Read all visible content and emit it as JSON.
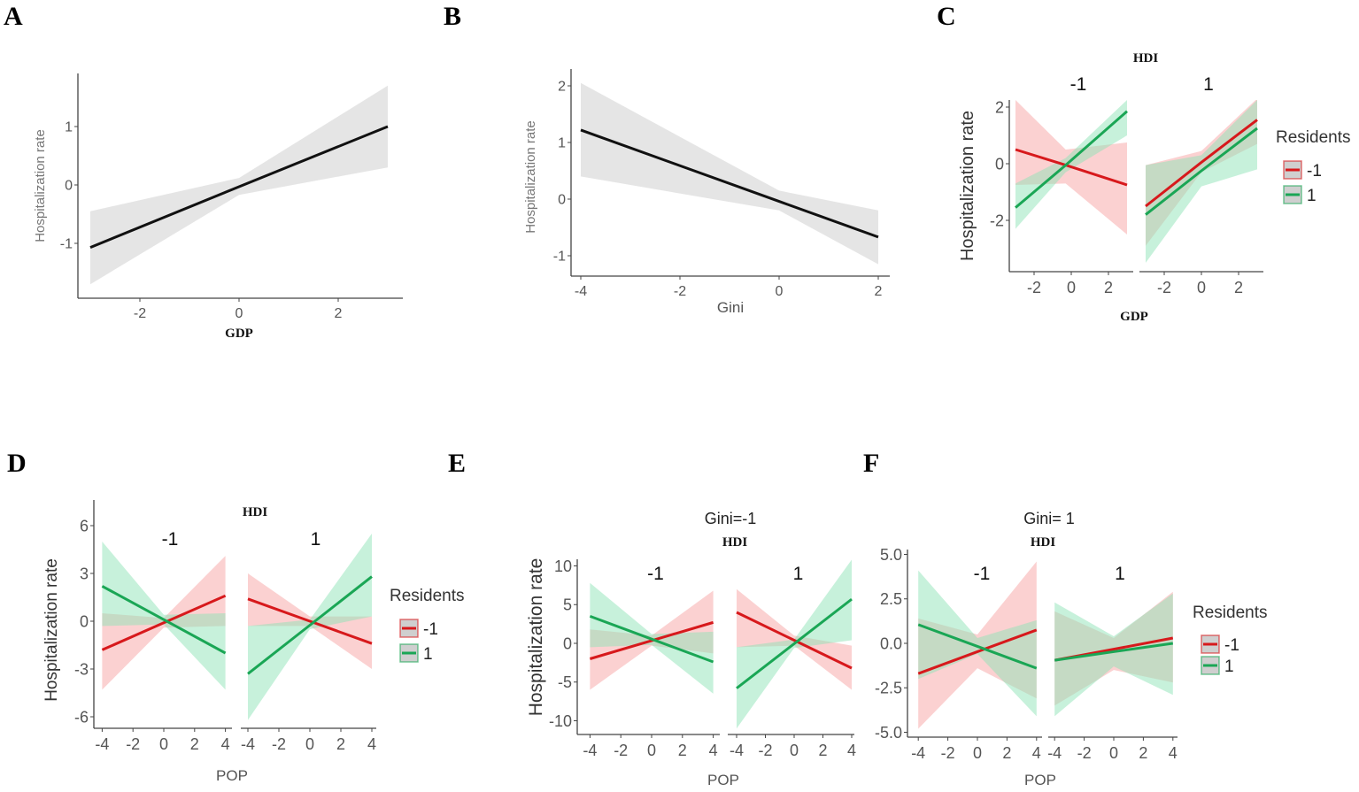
{
  "chart_data": [
    {
      "panel": "A",
      "type": "line",
      "ylabel": "Hospitalization rate",
      "xlabel": "GDP",
      "strip_title": "",
      "xticks": [
        -2,
        0,
        2
      ],
      "yticks": [
        -1,
        0,
        1
      ],
      "facets": [
        {
          "label": "",
          "series": [
            {
              "name": "fit",
              "color": "#111111",
              "band": "#cccccc",
              "x": [
                -3,
                0,
                3
              ],
              "y": [
                -1.07,
                -0.03,
                1.0
              ],
              "lo": [
                -1.7,
                -0.17,
                0.3
              ],
              "hi": [
                -0.45,
                0.12,
                1.7
              ]
            }
          ]
        }
      ]
    },
    {
      "panel": "B",
      "type": "line",
      "ylabel": "Hospitalization rate",
      "xlabel": "Gini",
      "strip_title": "",
      "xticks": [
        -4,
        -2,
        0,
        2
      ],
      "yticks": [
        -1,
        0,
        1,
        2
      ],
      "facets": [
        {
          "label": "",
          "series": [
            {
              "name": "fit",
              "color": "#111111",
              "band": "#cccccc",
              "x": [
                -4,
                0,
                2
              ],
              "y": [
                1.22,
                -0.04,
                -0.67
              ],
              "lo": [
                0.4,
                -0.2,
                -1.15
              ],
              "hi": [
                2.05,
                0.15,
                -0.2
              ]
            }
          ]
        }
      ]
    },
    {
      "panel": "C",
      "type": "line",
      "ylabel": "Hospitalization rate",
      "xlabel": "GDP",
      "strip_title": "HDI",
      "xticks": [
        -2,
        0,
        2
      ],
      "yticks": [
        -2,
        0,
        2
      ],
      "legend": {
        "title": "Residents",
        "entries": [
          "-1",
          "1"
        ]
      },
      "facets": [
        {
          "label": "-1",
          "series": [
            {
              "name": "-1",
              "color": "#d7191c",
              "band": "#f7a3a3",
              "x": [
                -3,
                -0.3,
                3
              ],
              "y": [
                0.5,
                -0.05,
                -0.75
              ],
              "lo": [
                -0.75,
                -0.7,
                -2.5
              ],
              "hi": [
                2.25,
                0.5,
                0.75
              ]
            },
            {
              "name": "1",
              "color": "#1aa655",
              "band": "#8fe3b8",
              "x": [
                -3,
                -0.3,
                3
              ],
              "y": [
                -1.55,
                -0.05,
                1.85
              ],
              "lo": [
                -2.3,
                -0.3,
                1.0
              ],
              "hi": [
                -0.7,
                0.2,
                2.25
              ]
            }
          ]
        },
        {
          "label": "1",
          "series": [
            {
              "name": "-1",
              "color": "#d7191c",
              "band": "#f7a3a3",
              "x": [
                -3,
                0,
                3
              ],
              "y": [
                -1.5,
                0.05,
                1.55
              ],
              "lo": [
                -2.9,
                -0.3,
                0.7
              ],
              "hi": [
                -0.05,
                0.45,
                2.3
              ]
            },
            {
              "name": "1",
              "color": "#1aa655",
              "band": "#8fe3b8",
              "x": [
                -3,
                0,
                3
              ],
              "y": [
                -1.8,
                -0.25,
                1.25
              ],
              "lo": [
                -3.5,
                -0.8,
                -0.2
              ],
              "hi": [
                -0.05,
                0.3,
                2.25
              ]
            }
          ]
        }
      ]
    },
    {
      "panel": "D",
      "type": "line",
      "ylabel": "Hospitalization rate",
      "xlabel": "POP",
      "strip_title": "HDI",
      "xticks": [
        -4,
        -2,
        0,
        2,
        4
      ],
      "yticks": [
        -6,
        -3,
        0,
        3,
        6
      ],
      "legend": {
        "title": "Residents",
        "entries": [
          "-1",
          "1"
        ]
      },
      "facets": [
        {
          "label": "-1",
          "series": [
            {
              "name": "-1",
              "color": "#d7191c",
              "band": "#f7a3a3",
              "x": [
                -4,
                0,
                4
              ],
              "y": [
                -1.8,
                -0.1,
                1.6
              ],
              "lo": [
                -4.3,
                -0.4,
                -0.3
              ],
              "hi": [
                0.5,
                0.2,
                4.1
              ]
            },
            {
              "name": "1",
              "color": "#1aa655",
              "band": "#8fe3b8",
              "x": [
                -4,
                0,
                4
              ],
              "y": [
                2.2,
                0.1,
                -2.0
              ],
              "lo": [
                -0.3,
                -0.2,
                -4.3
              ],
              "hi": [
                5.0,
                0.4,
                0.5
              ]
            }
          ]
        },
        {
          "label": "1",
          "series": [
            {
              "name": "-1",
              "color": "#d7191c",
              "band": "#f7a3a3",
              "x": [
                -4,
                0,
                4
              ],
              "y": [
                1.4,
                0.0,
                -1.4
              ],
              "lo": [
                -0.3,
                -0.3,
                -3.0
              ],
              "hi": [
                3.0,
                0.3,
                0.3
              ]
            },
            {
              "name": "1",
              "color": "#1aa655",
              "band": "#8fe3b8",
              "x": [
                -4,
                0,
                4
              ],
              "y": [
                -3.3,
                -0.25,
                2.8
              ],
              "lo": [
                -6.2,
                -0.5,
                0.3
              ],
              "hi": [
                -0.3,
                0.1,
                5.5
              ]
            }
          ]
        }
      ]
    },
    {
      "panel": "E",
      "type": "line",
      "ylabel": "Hospitalization rate",
      "xlabel": "POP",
      "title": "Gini=-1",
      "strip_title": "HDI",
      "xticks": [
        -4,
        -2,
        0,
        2,
        4
      ],
      "yticks": [
        -10,
        -5,
        0,
        5,
        10
      ],
      "facets": [
        {
          "label": "-1",
          "series": [
            {
              "name": "-1",
              "color": "#d7191c",
              "band": "#f7a3a3",
              "x": [
                -4,
                0,
                4
              ],
              "y": [
                -2.0,
                0.35,
                2.7
              ],
              "lo": [
                -6.0,
                -0.3,
                -1.3
              ],
              "hi": [
                1.8,
                1.0,
                6.8
              ]
            },
            {
              "name": "1",
              "color": "#1aa655",
              "band": "#8fe3b8",
              "x": [
                -4,
                0,
                4
              ],
              "y": [
                3.5,
                0.55,
                -2.4
              ],
              "lo": [
                -0.5,
                -0.2,
                -6.5
              ],
              "hi": [
                7.8,
                1.2,
                1.5
              ]
            }
          ]
        },
        {
          "label": "1",
          "series": [
            {
              "name": "-1",
              "color": "#d7191c",
              "band": "#f7a3a3",
              "x": [
                -4,
                0,
                4
              ],
              "y": [
                4.0,
                0.4,
                -3.2
              ],
              "lo": [
                -0.5,
                -0.3,
                -6.0
              ],
              "hi": [
                7.0,
                1.0,
                -0.3
              ]
            },
            {
              "name": "1",
              "color": "#1aa655",
              "band": "#8fe3b8",
              "x": [
                -4,
                0,
                4
              ],
              "y": [
                -5.8,
                -0.05,
                5.7
              ],
              "lo": [
                -11.0,
                -0.6,
                0.4
              ],
              "hi": [
                -0.5,
                0.5,
                10.8
              ]
            }
          ]
        }
      ]
    },
    {
      "panel": "F",
      "type": "line",
      "ylabel": "",
      "xlabel": "POP",
      "title": "Gini= 1",
      "strip_title": "HDI",
      "xticks": [
        -4,
        -2,
        0,
        2,
        4
      ],
      "yticks": [
        -5.0,
        -2.5,
        0.0,
        2.5,
        5.0
      ],
      "ytick_labels": [
        "-5.0",
        "-2.5",
        "0.0",
        "2.5",
        "5.0"
      ],
      "legend": {
        "title": "Residents",
        "entries": [
          "-1",
          "1"
        ]
      },
      "facets": [
        {
          "label": "-1",
          "series": [
            {
              "name": "-1",
              "color": "#d7191c",
              "band": "#f7a3a3",
              "x": [
                -4,
                0,
                4
              ],
              "y": [
                -1.7,
                -0.47,
                0.75
              ],
              "lo": [
                -4.8,
                -1.4,
                -3.1
              ],
              "hi": [
                1.4,
                0.5,
                4.6
              ]
            },
            {
              "name": "1",
              "color": "#1aa655",
              "band": "#8fe3b8",
              "x": [
                -4,
                0,
                4
              ],
              "y": [
                1.05,
                -0.17,
                -1.4
              ],
              "lo": [
                -2.0,
                -0.6,
                -4.1
              ],
              "hi": [
                4.1,
                0.3,
                1.3
              ]
            }
          ]
        },
        {
          "label": "1",
          "series": [
            {
              "name": "-1",
              "color": "#d7191c",
              "band": "#f7a3a3",
              "x": [
                -4,
                0,
                4
              ],
              "y": [
                -0.95,
                -0.33,
                0.3
              ],
              "lo": [
                -3.5,
                -1.5,
                -2.2
              ],
              "hi": [
                1.8,
                0.3,
                2.9
              ]
            },
            {
              "name": "1",
              "color": "#1aa655",
              "band": "#8fe3b8",
              "x": [
                -4,
                0,
                4
              ],
              "y": [
                -0.95,
                -0.47,
                0.0
              ],
              "lo": [
                -4.1,
                -1.3,
                -2.9
              ],
              "hi": [
                2.3,
                0.4,
                2.8
              ]
            }
          ]
        }
      ]
    }
  ]
}
